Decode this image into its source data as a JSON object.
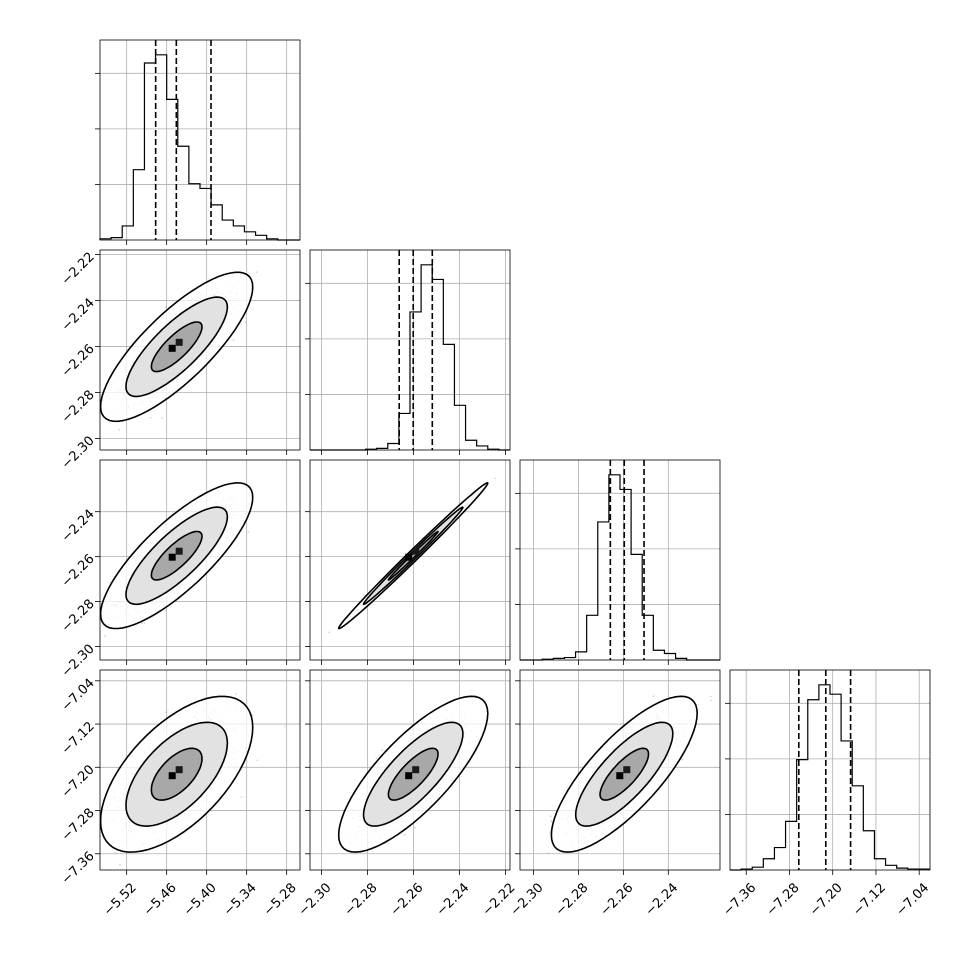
{
  "chart_data": {
    "type": "corner",
    "grid": true,
    "colors": {
      "hist": "#000000",
      "scatter": "#8c8c8c",
      "grid": "#b0b0b0"
    },
    "parameters": [
      {
        "range": [
          -5.56,
          -5.26
        ],
        "ticks": [
          -5.52,
          -5.46,
          -5.4,
          -5.34,
          -5.28
        ],
        "tick_labels": [
          "−5.52",
          "−5.46",
          "−5.40",
          "−5.34",
          "−5.28"
        ],
        "quantiles": [
          -5.4765,
          -5.4455,
          -5.3935
        ],
        "hist_counts": [
          1,
          2,
          12,
          60,
          151,
          158,
          120,
          80,
          48,
          44,
          30,
          17,
          12,
          7,
          4,
          1,
          0,
          0
        ]
      },
      {
        "range": [
          -2.305,
          -2.218
        ],
        "ticks": [
          -2.3,
          -2.28,
          -2.26,
          -2.24,
          -2.22
        ],
        "tick_labels": [
          "−2.30",
          "−2.28",
          "−2.26",
          "−2.24",
          "−2.22"
        ],
        "quantiles": [
          -2.2662,
          -2.2601,
          -2.2518
        ],
        "hist_counts": [
          0,
          0,
          0,
          0,
          0,
          1,
          2,
          8,
          45,
          170,
          228,
          210,
          130,
          55,
          12,
          5,
          1,
          0
        ]
      },
      {
        "range": [
          -2.306,
          -2.217
        ],
        "ticks": [
          -2.3,
          -2.28,
          -2.26,
          -2.24
        ],
        "tick_labels": [
          "−2.30",
          "−2.28",
          "−2.26",
          "−2.24"
        ],
        "quantiles": [
          -2.2658,
          -2.2596,
          -2.2508
        ],
        "hist_counts": [
          0,
          0,
          1,
          2,
          3,
          10,
          55,
          170,
          228,
          210,
          130,
          55,
          12,
          8,
          2,
          0,
          0,
          0
        ]
      },
      {
        "range": [
          -7.39,
          -7.02
        ],
        "ticks": [
          -7.36,
          -7.28,
          -7.2,
          -7.12,
          -7.04
        ],
        "tick_labels": [
          "−7.36",
          "−7.28",
          "−7.20",
          "−7.12",
          "−7.04"
        ],
        "quantiles": [
          -7.2627,
          -7.2128,
          -7.1669
        ],
        "hist_counts": [
          0,
          1,
          3,
          12,
          24,
          52,
          118,
          182,
          198,
          188,
          138,
          90,
          42,
          12,
          5,
          2,
          1,
          1
        ]
      }
    ],
    "pair_params": [
      {
        "row": 1,
        "col": 0,
        "mean": [
          -5.445,
          -2.2601
        ],
        "sd": [
          0.038,
          0.0108
        ],
        "rho": 0.8
      },
      {
        "row": 2,
        "col": 0,
        "mean": [
          -5.445,
          -2.2596
        ],
        "sd": [
          0.038,
          0.0108
        ],
        "rho": 0.8
      },
      {
        "row": 2,
        "col": 1,
        "mean": [
          -2.2601,
          -2.2596
        ],
        "sd": [
          0.0108,
          0.0108
        ],
        "rho": 0.995
      },
      {
        "row": 3,
        "col": 0,
        "mean": [
          -5.445,
          -7.2128
        ],
        "sd": [
          0.038,
          0.048
        ],
        "rho": 0.6
      },
      {
        "row": 3,
        "col": 1,
        "mean": [
          -2.2601,
          -7.2128
        ],
        "sd": [
          0.0108,
          0.048
        ],
        "rho": 0.78
      },
      {
        "row": 3,
        "col": 2,
        "mean": [
          -2.2596,
          -7.2128
        ],
        "sd": [
          0.0108,
          0.048
        ],
        "rho": 0.78
      }
    ]
  }
}
